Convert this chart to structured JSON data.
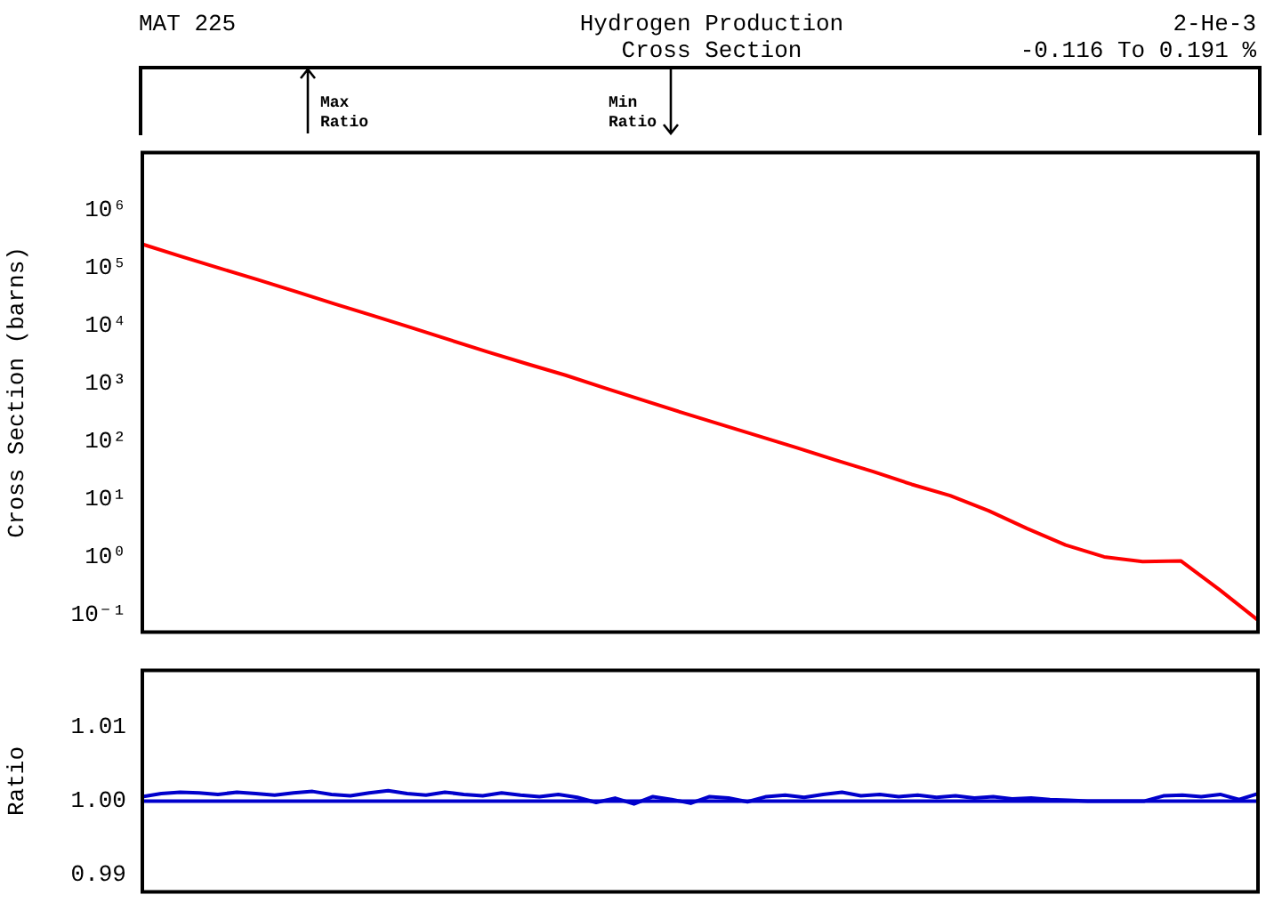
{
  "chart_data": [
    {
      "type": "line",
      "title": "Hydrogen Production\nCross Section",
      "ylabel": "Cross Section (barns)",
      "log": "y",
      "tick_labels": "y",
      "annotations": [
        "MAT 225",
        "2-He-3",
        "-0.116 To 0.191 %",
        "Max\nRatio",
        "Min\nRatio"
      ],
      "categories": [
        null,
        null,
        null,
        null,
        null,
        null,
        null,
        null,
        null,
        null,
        null,
        null,
        null,
        null,
        null,
        null,
        null,
        null,
        null,
        null,
        null,
        null,
        null,
        null,
        null,
        null,
        null,
        null,
        null,
        null
      ],
      "series": [
        {
          "color": "#ff0000",
          "values": [
            260000,
            160000,
            100000,
            63000,
            39000,
            24000,
            15000,
            9300,
            5700,
            3500,
            2200,
            1400,
            850,
            520,
            320,
            200,
            125,
            78,
            48,
            30,
            18,
            11.5,
            6.3,
            3.1,
            1.6,
            1.0,
            0.83,
            0.85,
            0.27,
            0.08
          ]
        }
      ],
      "ylim": [
        0.05,
        10000000
      ],
      "yticks": [
        {
          "value": 0.1,
          "label": "10⁻¹"
        },
        {
          "value": 1,
          "label": "10⁰"
        },
        {
          "value": 10,
          "label": "10¹"
        },
        {
          "value": 100,
          "label": "10²"
        },
        {
          "value": 1000,
          "label": "10³"
        },
        {
          "value": 10000,
          "label": "10⁴"
        },
        {
          "value": 100000,
          "label": "10⁵"
        },
        {
          "value": 1000000,
          "label": "10⁶"
        }
      ]
    },
    {
      "type": "line",
      "ylabel": "Ratio",
      "tick_labels": "y",
      "categories": [
        null,
        null,
        null,
        null,
        null,
        null,
        null,
        null,
        null,
        null,
        null,
        null,
        null,
        null,
        null,
        null,
        null,
        null,
        null,
        null,
        null,
        null,
        null,
        null,
        null,
        null,
        null,
        null,
        null,
        null,
        null,
        null,
        null,
        null,
        null,
        null,
        null,
        null,
        null,
        null,
        null,
        null,
        null,
        null,
        null,
        null,
        null,
        null,
        null,
        null,
        null,
        null,
        null,
        null,
        null,
        null,
        null,
        null,
        null,
        null
      ],
      "series": [
        {
          "color": "#0000cc",
          "values": [
            1.0006,
            1.001,
            1.0012,
            1.0011,
            1.0009,
            1.0012,
            1.001,
            1.0008,
            1.0011,
            1.0013,
            1.0009,
            1.0007,
            1.0011,
            1.0014,
            1.001,
            1.0008,
            1.0012,
            1.0009,
            1.0007,
            1.0011,
            1.0008,
            1.0006,
            1.0009,
            1.0005,
            0.9998,
            1.0004,
            0.9996,
            1.0006,
            1.0002,
            0.9997,
            1.0006,
            1.0004,
            0.9999,
            1.0006,
            1.0008,
            1.0005,
            1.0009,
            1.0012,
            1.0007,
            1.0009,
            1.0006,
            1.0008,
            1.0005,
            1.0007,
            1.0004,
            1.0006,
            1.0003,
            1.0004,
            1.0002,
            1.0001,
            1.0,
            1.0,
            1.0,
            1.0,
            1.0007,
            1.0008,
            1.0006,
            1.0009,
            1.0002,
            1.001
          ]
        }
      ],
      "ylim": [
        0.9877,
        1.0177
      ],
      "yticks": [
        {
          "value": 0.99,
          "label": "0.99"
        },
        {
          "value": 1,
          "label": "1.00"
        },
        {
          "value": 1.01,
          "label": "1.01"
        }
      ],
      "ref_lines": [
        {
          "axis": "y",
          "value": 1,
          "color": "#0000cc"
        }
      ]
    }
  ]
}
